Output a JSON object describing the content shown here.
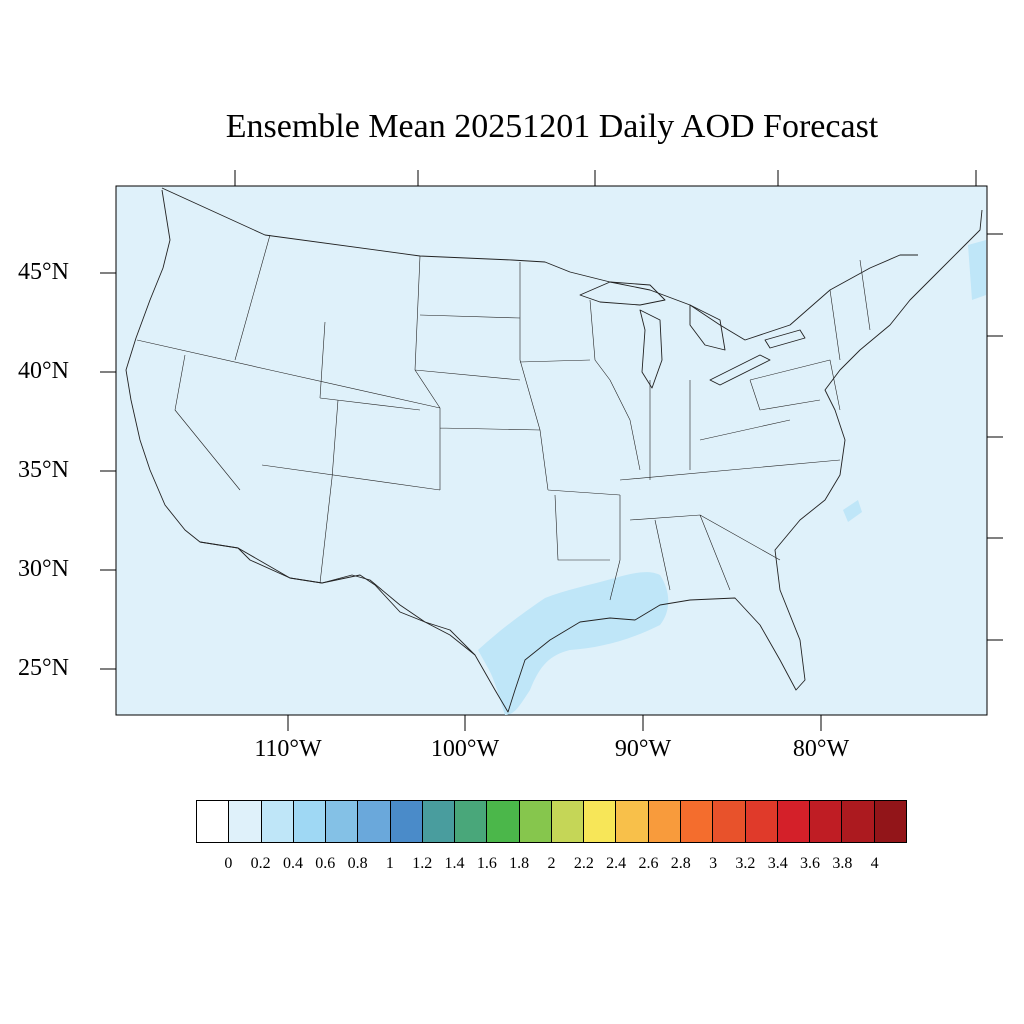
{
  "title": "Ensemble Mean 20251201 Daily AOD Forecast",
  "map": {
    "background_color": "#dff1fa",
    "plume_color": "#bfe6f8",
    "lat_labels": [
      "45°N",
      "40°N",
      "35°N",
      "30°N",
      "25°N"
    ],
    "lon_labels": [
      "110°W",
      "100°W",
      "90°W",
      "80°W"
    ]
  },
  "colorbar": {
    "colors": [
      "#ffffff",
      "#dff1fa",
      "#bfe6f8",
      "#9fd8f4",
      "#84c1e6",
      "#6aa8db",
      "#4a8bc9",
      "#499d9e",
      "#49a77a",
      "#4bb74a",
      "#86c64d",
      "#c5d657",
      "#f7e658",
      "#f8c04a",
      "#f89b3c",
      "#f46d2d",
      "#e8522b",
      "#e03a2a",
      "#d42029",
      "#bf1d24",
      "#ac1a1f",
      "#921519"
    ],
    "labels": [
      "0",
      "0.2",
      "0.4",
      "0.6",
      "0.8",
      "1",
      "1.2",
      "1.4",
      "1.6",
      "1.8",
      "2",
      "2.2",
      "2.4",
      "2.6",
      "2.8",
      "3",
      "3.2",
      "3.4",
      "3.6",
      "3.8",
      "4"
    ]
  }
}
